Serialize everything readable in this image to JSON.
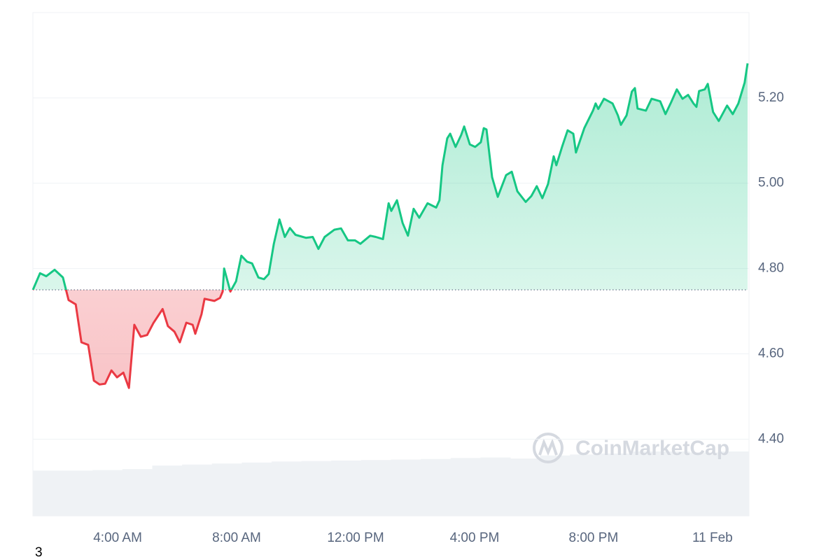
{
  "chart_data": {
    "type": "line",
    "x": [
      1.15,
      1.39,
      1.6,
      1.88,
      2.16,
      2.35,
      2.59,
      2.78,
      3.01,
      3.2,
      3.39,
      3.58,
      3.79,
      3.98,
      4.19,
      4.38,
      4.56,
      4.78,
      4.99,
      5.2,
      5.51,
      5.69,
      5.91,
      6.09,
      6.31,
      6.52,
      6.61,
      6.82,
      6.92,
      7.25,
      7.44,
      7.53,
      7.58,
      7.79,
      7.98,
      8.16,
      8.35,
      8.52,
      8.73,
      8.92,
      9.08,
      9.25,
      9.44,
      9.62,
      9.79,
      9.98,
      10.33,
      10.56,
      10.75,
      10.96,
      11.29,
      11.51,
      11.74,
      11.98,
      12.16,
      12.49,
      12.68,
      12.92,
      13.11,
      13.2,
      13.39,
      13.58,
      13.76,
      13.95,
      14.14,
      14.42,
      14.71,
      14.82,
      14.92,
      15.08,
      15.18,
      15.36,
      15.55,
      15.65,
      15.84,
      16.02,
      16.21,
      16.31,
      16.4,
      16.59,
      16.78,
      17.06,
      17.25,
      17.44,
      17.72,
      17.91,
      18.09,
      18.28,
      18.47,
      18.66,
      18.75,
      18.94,
      19.13,
      19.32,
      19.41,
      19.69,
      19.98,
      20.07,
      20.16,
      20.35,
      20.64,
      20.82,
      20.92,
      21.11,
      21.29,
      21.39,
      21.48,
      21.76,
      21.95,
      22.24,
      22.42,
      22.61,
      22.8,
      22.99,
      23.18,
      23.36,
      23.46,
      23.55,
      23.74,
      23.84,
      24.02,
      24.21,
      24.49,
      24.68,
      24.87,
      25.08,
      25.18
    ],
    "values": [
      4.75,
      4.789,
      4.782,
      4.797,
      4.779,
      4.726,
      4.716,
      4.627,
      4.621,
      4.537,
      4.528,
      4.53,
      4.561,
      4.545,
      4.556,
      4.52,
      4.668,
      4.64,
      4.644,
      4.672,
      4.705,
      4.665,
      4.652,
      4.627,
      4.673,
      4.668,
      4.647,
      4.693,
      4.729,
      4.724,
      4.731,
      4.746,
      4.8,
      4.746,
      4.77,
      4.83,
      4.816,
      4.812,
      4.779,
      4.775,
      4.787,
      4.858,
      4.915,
      4.874,
      4.895,
      4.879,
      4.872,
      4.874,
      4.846,
      4.874,
      4.891,
      4.894,
      4.866,
      4.866,
      4.858,
      4.877,
      4.874,
      4.869,
      4.953,
      4.935,
      4.96,
      4.907,
      4.877,
      4.94,
      4.919,
      4.953,
      4.943,
      4.96,
      5.042,
      5.105,
      5.116,
      5.085,
      5.113,
      5.133,
      5.091,
      5.085,
      5.096,
      5.129,
      5.126,
      5.014,
      4.968,
      5.019,
      5.027,
      4.981,
      4.956,
      4.97,
      4.993,
      4.965,
      4.998,
      5.063,
      5.042,
      5.085,
      5.124,
      5.116,
      5.072,
      5.129,
      5.17,
      5.187,
      5.174,
      5.198,
      5.187,
      5.159,
      5.137,
      5.159,
      5.215,
      5.223,
      5.175,
      5.17,
      5.198,
      5.192,
      5.162,
      5.19,
      5.22,
      5.198,
      5.207,
      5.187,
      5.179,
      5.216,
      5.22,
      5.233,
      5.167,
      5.146,
      5.182,
      5.162,
      5.187,
      5.236,
      5.281
    ],
    "baseline": 4.75,
    "color_up": "#16c784",
    "color_down": "#ea3943",
    "xlim": [
      1.15,
      25.18
    ],
    "xticks": [
      {
        "value": 4,
        "label": "4:00 AM"
      },
      {
        "value": 8,
        "label": "8:00 AM"
      },
      {
        "value": 12,
        "label": "12:00 PM"
      },
      {
        "value": 16,
        "label": "4:00 PM"
      },
      {
        "value": 20,
        "label": "8:00 PM"
      },
      {
        "value": 24,
        "label": "11 Feb"
      }
    ],
    "ylim": [
      4.22,
      5.4
    ],
    "yticks": [
      {
        "value": 4.4,
        "label": "4.40"
      },
      {
        "value": 4.6,
        "label": "4.60"
      },
      {
        "value": 4.8,
        "label": "4.80"
      },
      {
        "value": 5.0,
        "label": "5.00"
      },
      {
        "value": 5.2,
        "label": "5.20"
      }
    ],
    "grid": true,
    "volume": {
      "color": "#eff2f5",
      "ylim": [
        0,
        100
      ],
      "values": [
        9.0,
        9.0,
        9.1,
        9.3,
        10.0,
        10.2,
        10.4,
        10.6,
        10.8,
        10.9,
        11.0,
        11.1,
        11.2,
        11.3,
        11.5,
        11.6,
        11.4,
        12.0,
        12.2,
        12.4,
        12.8,
        12.8,
        12.6,
        12.8
      ]
    },
    "watermark": "CoinMarketCap",
    "footnote": "3"
  }
}
